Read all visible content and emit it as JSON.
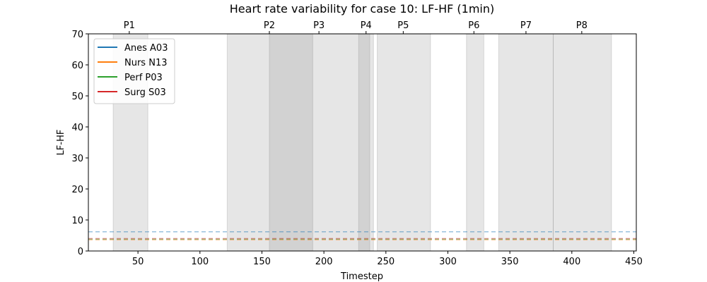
{
  "chart_data": {
    "type": "line",
    "title": "Heart rate variability for case 10: LF-HF (1min)",
    "xlabel": "Timestep",
    "ylabel": "LF-HF",
    "xlim": [
      10,
      452
    ],
    "ylim": [
      0,
      70
    ],
    "x_ticks": [
      50,
      100,
      150,
      200,
      250,
      300,
      350,
      400,
      450
    ],
    "y_ticks": [
      0,
      10,
      20,
      30,
      40,
      50,
      60,
      70
    ],
    "grid": false,
    "legend_position": "upper-left",
    "series": [
      {
        "name": "Anes A03",
        "color": "#1f77b4",
        "baseline": 6.2
      },
      {
        "name": "Nurs N13",
        "color": "#ff7f0e",
        "baseline": 3.6
      },
      {
        "name": "Perf P03",
        "color": "#2ca02c",
        "baseline": 3.8
      },
      {
        "name": "Surg S03",
        "color": "#d62728",
        "baseline": 4.0
      }
    ],
    "phases": [
      {
        "label": "P1",
        "start": 30,
        "end": 58,
        "marker": 43
      },
      {
        "label": "P2",
        "start": 122,
        "end": 191,
        "marker": 156
      },
      {
        "label": "P3",
        "start": 156,
        "end": 237,
        "marker": 196
      },
      {
        "label": "P4",
        "start": 228,
        "end": 240,
        "marker": 234
      },
      {
        "label": "P5",
        "start": 243,
        "end": 286,
        "marker": 264
      },
      {
        "label": "P6",
        "start": 315,
        "end": 329,
        "marker": 321
      },
      {
        "label": "P7",
        "start": 341,
        "end": 385,
        "marker": 363
      },
      {
        "label": "P8",
        "start": 385,
        "end": 432,
        "marker": 408
      }
    ]
  }
}
